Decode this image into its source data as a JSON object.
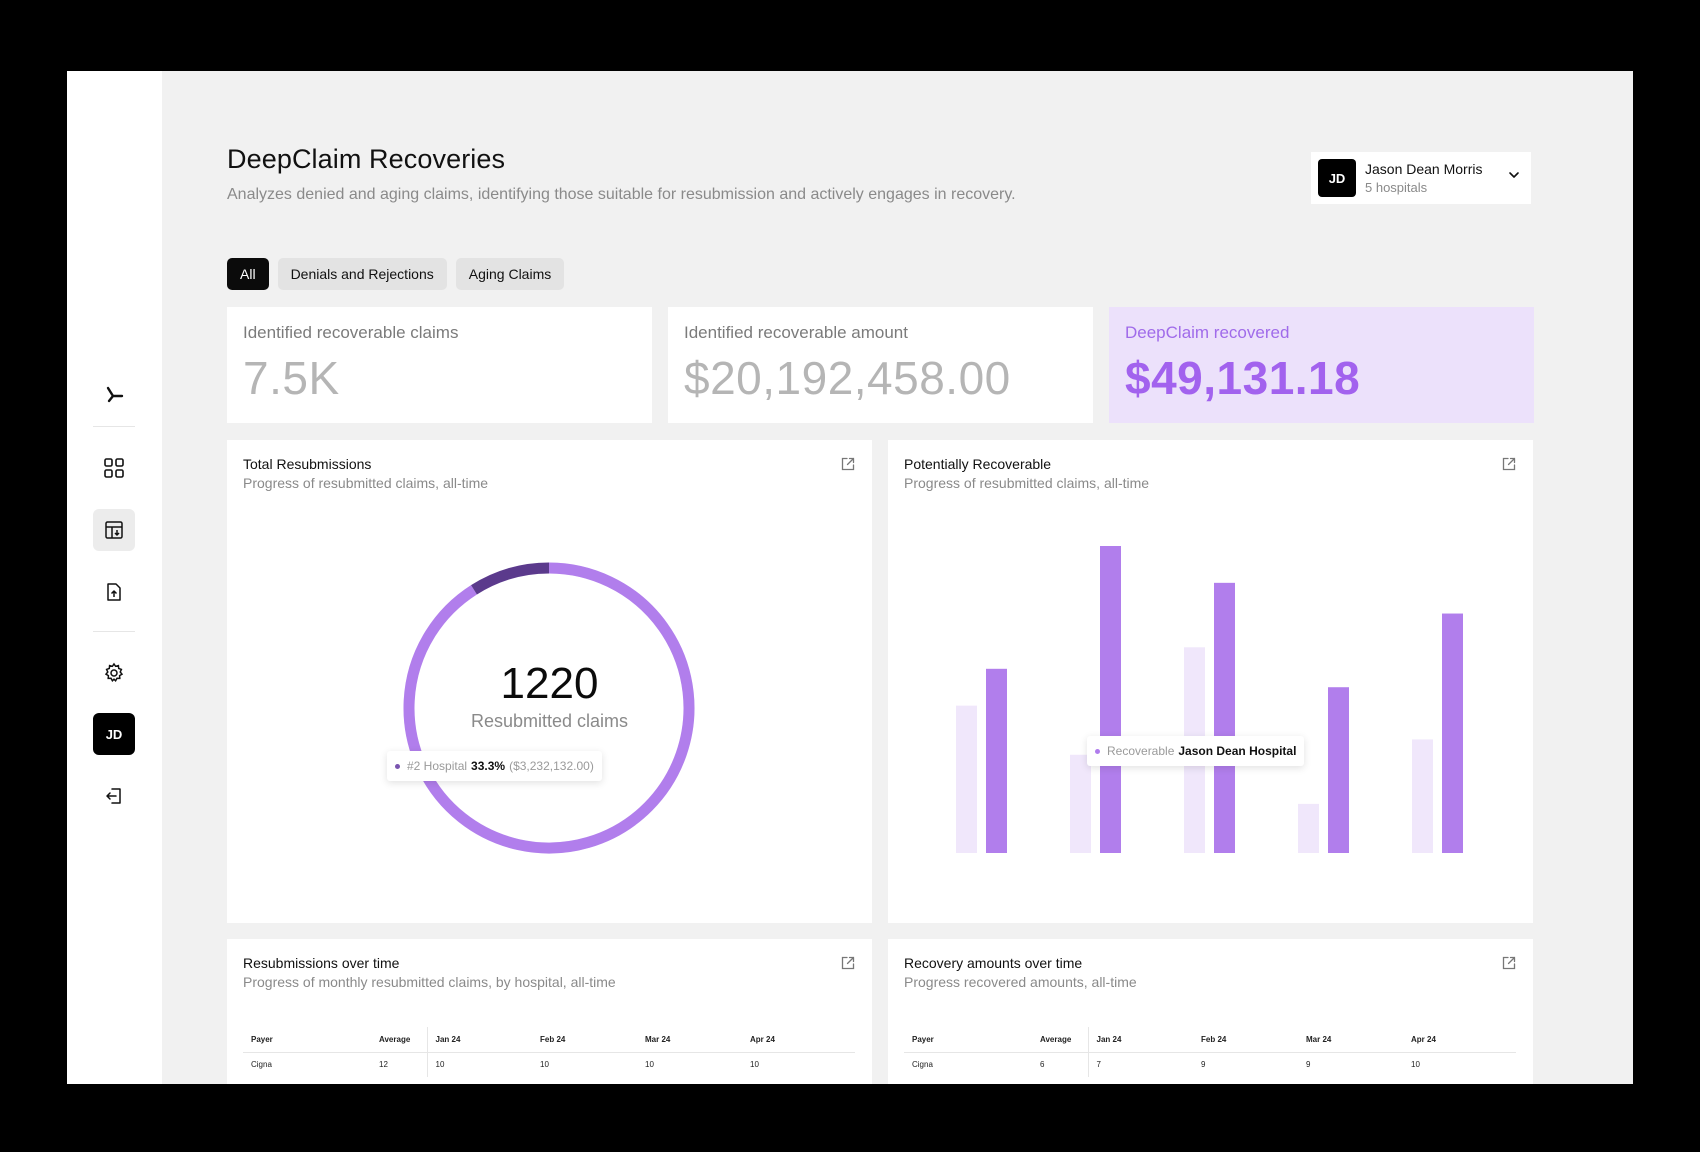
{
  "page": {
    "title": "DeepClaim Recoveries",
    "subtitle": "Analyzes denied and aging claims, identifying those suitable for resubmission and actively engages in recovery."
  },
  "user": {
    "initials": "JD",
    "name": "Jason Dean Morris",
    "hospitals": "5 hospitals"
  },
  "sidebar": {
    "avatar_initials": "JD"
  },
  "tabs": [
    {
      "label": "All",
      "active": true
    },
    {
      "label": "Denials and Rejections",
      "active": false
    },
    {
      "label": "Aging Claims",
      "active": false
    }
  ],
  "stats": [
    {
      "label": "Identified recoverable claims",
      "value": "7.5K"
    },
    {
      "label": "Identified recoverable amount",
      "value": "$20,192,458.00"
    },
    {
      "label": "DeepClaim recovered",
      "value": "$49,131.18"
    }
  ],
  "cards": {
    "total_resubmissions": {
      "title": "Total Resubmissions",
      "subtitle": "Progress of resubmitted claims, all-time",
      "center_value": "1220",
      "center_label": "Resubmitted claims",
      "tooltip": {
        "name": "#2 Hospital",
        "percent": "33.3%",
        "amount": "($3,232,132.00)"
      }
    },
    "potentially_recoverable": {
      "title": "Potentially Recoverable",
      "subtitle": "Progress of resubmitted claims, all-time",
      "tooltip": {
        "label": "Recoverable",
        "name": "Jason Dean Hospital"
      }
    },
    "resubmissions_over_time": {
      "title": "Resubmissions over time",
      "subtitle": "Progress of monthly resubmitted claims, by hospital, all-time",
      "headers": [
        "Payer",
        "Average",
        "Jan 24",
        "Feb 24",
        "Mar 24",
        "Apr 24"
      ],
      "rows": [
        [
          "Cigna",
          "12",
          "10",
          "10",
          "10",
          "10"
        ]
      ]
    },
    "recovery_amounts_over_time": {
      "title": "Recovery amounts over time",
      "subtitle": "Progress recovered amounts, all-time",
      "headers": [
        "Payer",
        "Average",
        "Jan 24",
        "Feb 24",
        "Mar 24",
        "Apr 24"
      ],
      "rows": [
        [
          "Cigna",
          "6",
          "7",
          "9",
          "9",
          "10"
        ]
      ]
    }
  },
  "colors": {
    "accent": "#a262ee",
    "accent_bg": "#ece1fb",
    "bar_dark": "#b17eec",
    "bar_light": "#f0e7fb",
    "donut_track": "#eee4fb",
    "donut_fill": "#b17eec",
    "donut_highlight": "#5b3a8c"
  },
  "icons": [
    "logo-icon",
    "grid-icon",
    "table-download-icon",
    "file-upload-icon",
    "gear-icon",
    "logout-icon",
    "external-link-icon",
    "chevron-down-icon"
  ],
  "chart_data": [
    {
      "type": "pie",
      "variant": "donut",
      "title": "Total Resubmissions",
      "total": 1220,
      "segments": [
        {
          "name": "",
          "share": 0.09
        },
        {
          "name": "",
          "share": 0.41
        },
        {
          "name": "",
          "share": 0.5
        }
      ]
    },
    {
      "type": "bar",
      "title": "Potentially Recoverable",
      "categories": [
        "",
        "",
        "",
        "",
        ""
      ],
      "series": [
        {
          "values": [
            0.48,
            0.32,
            0.67,
            0.16,
            0.37
          ]
        },
        {
          "values": [
            0.6,
            1.0,
            0.88,
            0.54,
            0.78
          ]
        }
      ],
      "ylim": [
        0,
        1
      ],
      "axes_visible": false
    }
  ]
}
